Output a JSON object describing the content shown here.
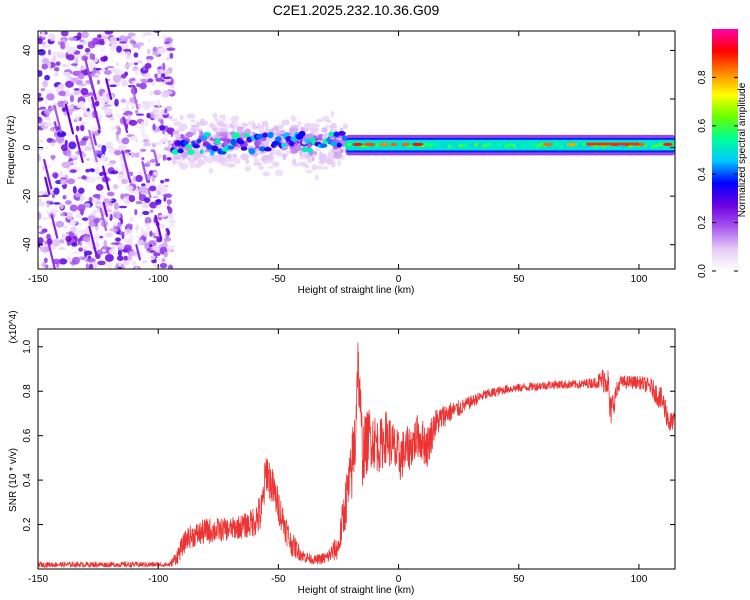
{
  "title": "C2E1.2025.232.10.36.G09",
  "colors": {
    "snr_line": "#ee3333",
    "axis": "#000000",
    "background": "#ffffff"
  },
  "chart_data": [
    {
      "type": "heatmap",
      "title": "C2E1.2025.232.10.36.G09",
      "xlabel": "Height of straight line (km)",
      "ylabel": "Frequency (Hz)",
      "xlim": [
        -150,
        115
      ],
      "ylim": [
        -50,
        48
      ],
      "xticks": [
        -150,
        -100,
        -50,
        0,
        50,
        100
      ],
      "yticks": [
        -40,
        -20,
        0,
        20,
        40
      ],
      "colorbar": {
        "label": "Normalized spectral amplitude",
        "range": [
          0,
          1
        ],
        "ticks": [
          "0.0",
          "0.2",
          "0.4",
          "0.6",
          "0.8"
        ],
        "colormap": [
          "#ffffff",
          "#e6ccf7",
          "#a855ee",
          "#6b00e0",
          "#0000ff",
          "#00c8ff",
          "#00ff99",
          "#66ff00",
          "#ffff00",
          "#ff8800",
          "#ff0000",
          "#ff00aa"
        ]
      },
      "regions": [
        {
          "name": "noise",
          "x_range": [
            -150,
            -94
          ],
          "freq_range": [
            -50,
            48
          ],
          "level": "0.05-0.25"
        },
        {
          "name": "scattered_signal",
          "x_range": [
            -94,
            -22
          ],
          "freq_center": 2,
          "freq_spread": 10,
          "level": "0.2-0.5"
        },
        {
          "name": "stable_tone",
          "x_range": [
            -22,
            115
          ],
          "freq_center": 1,
          "freq_width": 3,
          "level": "0.45-0.9"
        }
      ]
    },
    {
      "type": "line",
      "xlabel": "Height of straight line (km)",
      "ylabel": "SNR (10 * v/v)",
      "scale_label": "(x10^4)",
      "xlim": [
        -150,
        115
      ],
      "ylim": [
        0,
        1.08
      ],
      "xticks": [
        -150,
        -100,
        -50,
        0,
        50,
        100
      ],
      "yticks": [
        0.2,
        0.4,
        0.6,
        0.8,
        1.0
      ],
      "ytick_labels": [
        "0.2",
        "0.4",
        "0.6",
        "0.8",
        "1.0"
      ],
      "series": [
        {
          "name": "SNR",
          "x": [
            -150,
            -120,
            -95,
            -92,
            -88,
            -80,
            -70,
            -62,
            -57,
            -55,
            -45,
            -40,
            -35,
            -30,
            -25,
            -22,
            -20,
            -18,
            -17,
            -15,
            -12,
            -8,
            -5,
            0,
            5,
            8,
            12,
            15,
            20,
            25,
            28,
            35,
            45,
            55,
            65,
            75,
            82,
            87,
            88,
            92,
            100,
            105,
            110,
            113,
            115
          ],
          "values": [
            0.02,
            0.02,
            0.02,
            0.06,
            0.14,
            0.17,
            0.18,
            0.2,
            0.25,
            0.45,
            0.12,
            0.06,
            0.04,
            0.05,
            0.1,
            0.3,
            0.4,
            0.6,
            0.95,
            0.52,
            0.6,
            0.55,
            0.6,
            0.5,
            0.55,
            0.6,
            0.55,
            0.65,
            0.7,
            0.72,
            0.74,
            0.78,
            0.81,
            0.82,
            0.83,
            0.83,
            0.84,
            0.86,
            0.7,
            0.84,
            0.84,
            0.82,
            0.75,
            0.65,
            0.68
          ],
          "noise_amplitude": [
            0.012,
            0.012,
            0.012,
            0.04,
            0.05,
            0.06,
            0.05,
            0.06,
            0.1,
            0.1,
            0.06,
            0.03,
            0.02,
            0.03,
            0.06,
            0.12,
            0.15,
            0.2,
            0.14,
            0.15,
            0.14,
            0.12,
            0.12,
            0.12,
            0.1,
            0.1,
            0.1,
            0.07,
            0.05,
            0.04,
            0.03,
            0.025,
            0.02,
            0.02,
            0.02,
            0.02,
            0.025,
            0.08,
            0.08,
            0.03,
            0.03,
            0.04,
            0.06,
            0.06,
            0.02
          ]
        }
      ]
    }
  ]
}
